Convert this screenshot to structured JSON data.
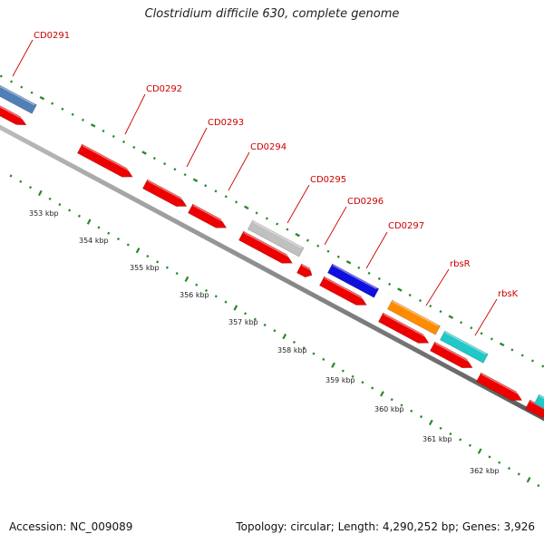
{
  "title": "Clostridium difficile 630, complete genome",
  "accession": "Accession: NC_009089",
  "summary": "Topology: circular; Length: 4,290,252 bp; Genes: 3,926",
  "colors": {
    "backbone": "#888888",
    "gene_default": "#ee0000",
    "label": "#cc0000",
    "tick": "#2a8a2a"
  },
  "ticks": [
    {
      "label": "353 kbp"
    },
    {
      "label": "354 kbp"
    },
    {
      "label": "355 kbp"
    },
    {
      "label": "356 kbp"
    },
    {
      "label": "357 kbp"
    },
    {
      "label": "358 kbp"
    },
    {
      "label": "359 kbp"
    },
    {
      "label": "360 kbp"
    },
    {
      "label": "361 kbp"
    },
    {
      "label": "362 kbp"
    }
  ],
  "labeled_genes": [
    {
      "name": "CD0291",
      "color": "#4f7fb5"
    },
    {
      "name": "CD0292",
      "color": "#ee0000"
    },
    {
      "name": "CD0293",
      "color": "#ee0000"
    },
    {
      "name": "CD0294",
      "color": "#ee0000"
    },
    {
      "name": "CD0295",
      "color": "#c0c0c0"
    },
    {
      "name": "CD0296",
      "color": "#1010dd"
    },
    {
      "name": "CD0297",
      "color": "#ee0000"
    },
    {
      "name": "rbsR",
      "color": "#ff8c00"
    },
    {
      "name": "rbsK",
      "color": "#20c8c8"
    }
  ]
}
